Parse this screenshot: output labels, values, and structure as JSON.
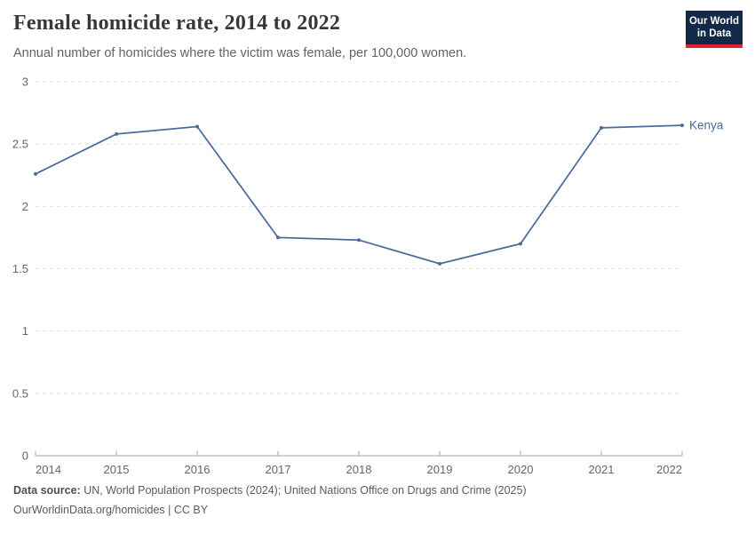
{
  "header": {
    "logo": {
      "line1": "Our World",
      "line2": "in Data"
    }
  },
  "chart_data": {
    "type": "line",
    "title": "Female homicide rate, 2014 to 2022",
    "subtitle": "Annual number of homicides where the victim was female, per 100,000 women.",
    "x": [
      2014,
      2015,
      2016,
      2017,
      2018,
      2019,
      2020,
      2021,
      2022
    ],
    "series": [
      {
        "name": "Kenya",
        "values": [
          2.26,
          2.58,
          2.64,
          1.75,
          1.73,
          1.54,
          1.7,
          2.63,
          2.65
        ],
        "color": "#4C6A9C"
      }
    ],
    "ylim": [
      0,
      3
    ],
    "yticks": [
      0,
      0.5,
      1,
      1.5,
      2,
      2.5,
      3
    ],
    "xlabel": "",
    "ylabel": "",
    "grid": "horizontal-dashed",
    "legend": "line-end-label"
  },
  "footer": {
    "source_label": "Data source:",
    "source_text": "UN, World Population Prospects (2024); United Nations Office on Drugs and Crime (2025)",
    "citation": "OurWorldinData.org/homicides | CC BY"
  },
  "colors": {
    "series_line": "#4C6A9C",
    "gridline": "#dddddd",
    "axis": "#a5a5a5",
    "tick_label": "#666666",
    "title_text": "#383838",
    "subtitle_text": "#636363",
    "footer_text": "#5b5b5b",
    "logo_background": "#12294a",
    "logo_red_bar": "#e0232d"
  }
}
